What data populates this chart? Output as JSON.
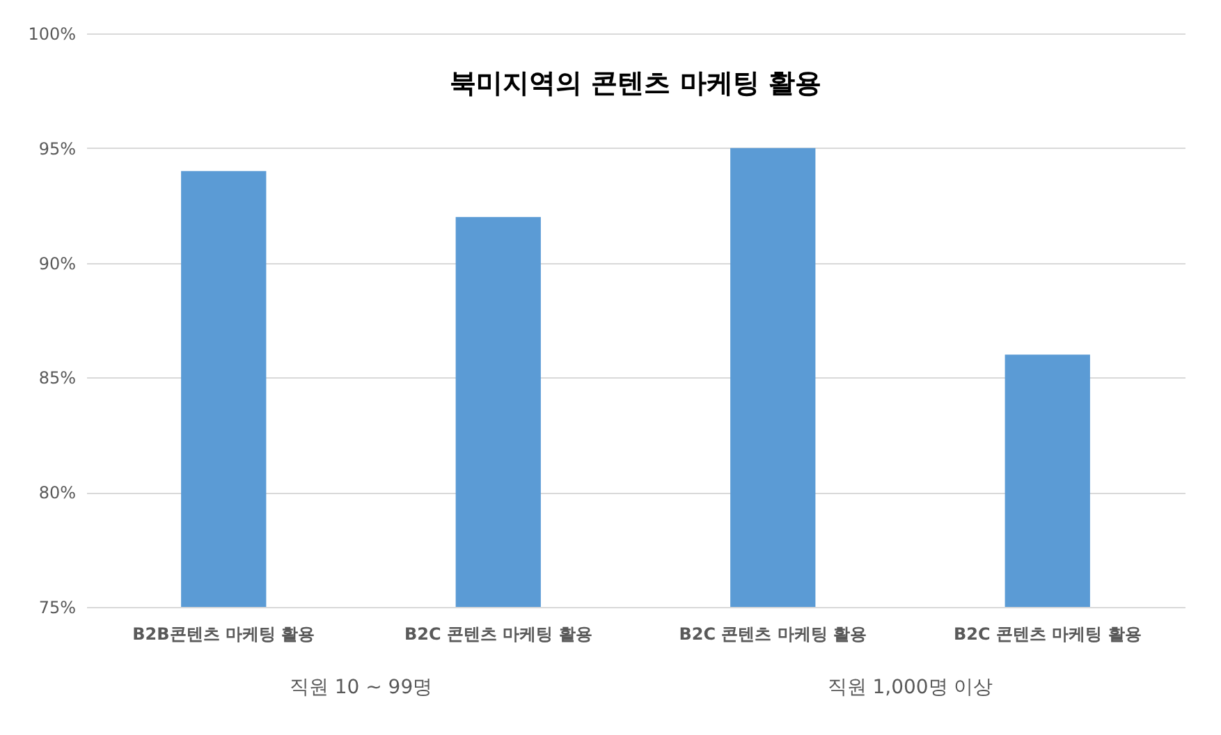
{
  "chart_data": {
    "type": "bar",
    "title": "북미지역의 콘텐츠 마케팅 활용",
    "categories": [
      "B2B콘텐츠 마케팅 활용",
      "B2C 콘텐츠 마케팅 활용",
      "B2C 콘텐츠 마케팅 활용",
      "B2C 콘텐츠 마케팅 활용"
    ],
    "values": [
      94,
      92,
      95,
      86
    ],
    "color": "#5b9bd5",
    "ylim": [
      75,
      100
    ],
    "yticks": [
      {
        "value": 75,
        "label": "75%"
      },
      {
        "value": 80,
        "label": "80%"
      },
      {
        "value": 85,
        "label": "85%"
      },
      {
        "value": 90,
        "label": "90%"
      },
      {
        "value": 95,
        "label": "95%"
      },
      {
        "value": 100,
        "label": "100%"
      }
    ],
    "grid": "y",
    "annotations": [
      "직원 10 ~ 99명",
      "직원 1,000명 이상"
    ]
  }
}
